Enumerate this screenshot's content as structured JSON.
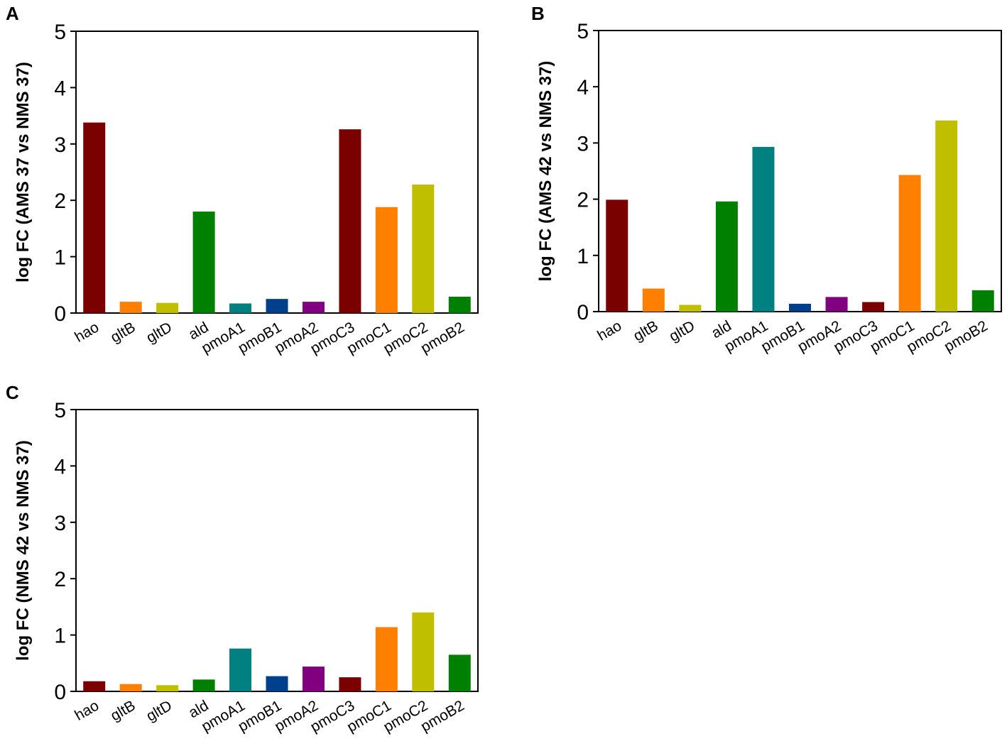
{
  "chart_data": [
    {
      "panel": "A",
      "type": "bar",
      "title": "",
      "xlabel": "",
      "ylabel": "log FC (AMS 37 vs NMS 37)",
      "ylim": [
        0,
        5
      ],
      "yticks": [
        "0",
        "1",
        "2",
        "3",
        "4",
        "5"
      ],
      "grid": false,
      "categories": [
        "hao",
        "gltB",
        "gltD",
        "ald",
        "pmoA1",
        "pmoB1",
        "pmoA2",
        "pmoC3",
        "pmoC1",
        "pmoC2",
        "pmoB2"
      ],
      "values": [
        3.38,
        0.2,
        0.18,
        1.8,
        0.17,
        0.25,
        0.2,
        3.26,
        1.88,
        2.28,
        0.29
      ],
      "colors": [
        "#7b0000",
        "#ff8000",
        "#bfbf00",
        "#008000",
        "#008080",
        "#003f8a",
        "#800080",
        "#7b0000",
        "#ff8000",
        "#bfbf00",
        "#008000"
      ]
    },
    {
      "panel": "B",
      "type": "bar",
      "title": "",
      "xlabel": "",
      "ylabel": "log FC (AMS 42 vs NMS 37)",
      "ylim": [
        0,
        5
      ],
      "yticks": [
        "0",
        "1",
        "2",
        "3",
        "4",
        "5"
      ],
      "grid": false,
      "categories": [
        "hao",
        "gltB",
        "gltD",
        "ald",
        "pmoA1",
        "pmoB1",
        "pmoA2",
        "pmoC3",
        "pmoC1",
        "pmoC2",
        "pmoB2"
      ],
      "values": [
        1.99,
        0.41,
        0.12,
        1.96,
        2.93,
        0.14,
        0.26,
        0.17,
        2.43,
        3.4,
        0.38
      ],
      "colors": [
        "#7b0000",
        "#ff8000",
        "#bfbf00",
        "#008000",
        "#008080",
        "#003f8a",
        "#800080",
        "#7b0000",
        "#ff8000",
        "#bfbf00",
        "#008000"
      ]
    },
    {
      "panel": "C",
      "type": "bar",
      "title": "",
      "xlabel": "",
      "ylabel": "log FC (NMS 42 vs NMS 37)",
      "ylim": [
        0,
        5
      ],
      "yticks": [
        "0",
        "1",
        "2",
        "3",
        "4",
        "5"
      ],
      "grid": false,
      "categories": [
        "hao",
        "gltB",
        "gltD",
        "ald",
        "pmoA1",
        "pmoB1",
        "pmoA2",
        "pmoC3",
        "pmoC1",
        "pmoC2",
        "pmoB2"
      ],
      "values": [
        0.18,
        0.13,
        0.11,
        0.21,
        0.76,
        0.27,
        0.44,
        0.25,
        1.14,
        1.4,
        0.65
      ],
      "colors": [
        "#7b0000",
        "#ff8000",
        "#bfbf00",
        "#008000",
        "#008080",
        "#003f8a",
        "#800080",
        "#7b0000",
        "#ff8000",
        "#bfbf00",
        "#008000"
      ]
    }
  ]
}
